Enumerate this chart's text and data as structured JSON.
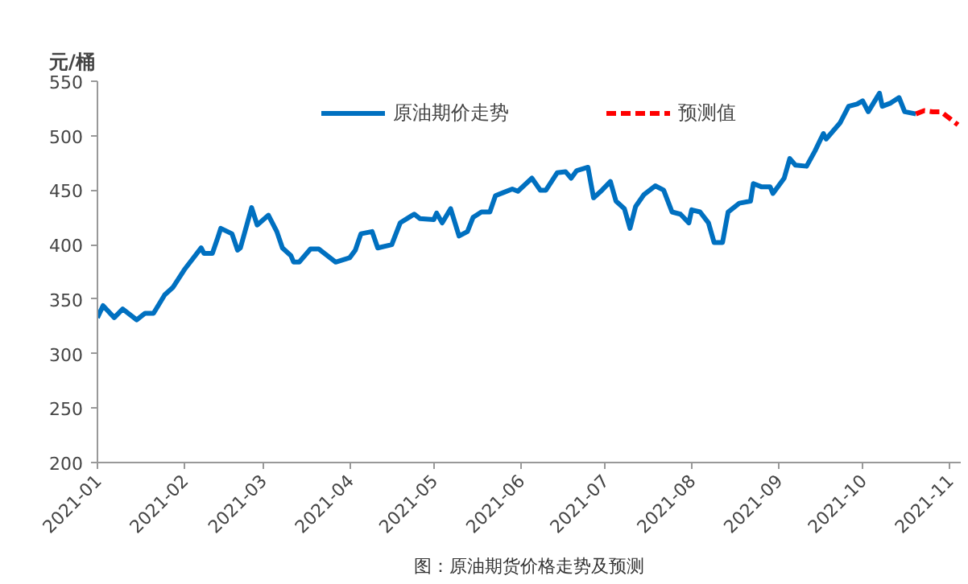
{
  "chart_data": {
    "type": "line",
    "ylabel": "元/桶",
    "annotations": [
      "图：原油期货价格走势及预测"
    ],
    "xlim": [
      "2021-01-01",
      "2021-11-05"
    ],
    "ylim": [
      200,
      550
    ],
    "yticks": [
      200,
      250,
      300,
      350,
      400,
      450,
      500,
      550
    ],
    "xticks": [
      {
        "value": "2021-01-01",
        "label": "2021-01"
      },
      {
        "value": "2021-02-01",
        "label": "2021-02"
      },
      {
        "value": "2021-03-01",
        "label": "2021-03"
      },
      {
        "value": "2021-04-01",
        "label": "2021-04"
      },
      {
        "value": "2021-05-01",
        "label": "2021-05"
      },
      {
        "value": "2021-06-01",
        "label": "2021-06"
      },
      {
        "value": "2021-07-01",
        "label": "2021-07"
      },
      {
        "value": "2021-08-01",
        "label": "2021-08"
      },
      {
        "value": "2021-09-01",
        "label": "2021-09"
      },
      {
        "value": "2021-10-01",
        "label": "2021-10"
      },
      {
        "value": "2021-11-01",
        "label": "2021-11"
      }
    ],
    "grid": false,
    "legend": "top",
    "marker": "none",
    "series": [
      {
        "name": "原油期价走势",
        "color": "#0070c0",
        "line_style": "solid",
        "x": [
          "2021-01-01",
          "2021-01-03",
          "2021-01-07",
          "2021-01-10",
          "2021-01-15",
          "2021-01-18",
          "2021-01-21",
          "2021-01-25",
          "2021-01-28",
          "2021-02-01",
          "2021-02-07",
          "2021-02-08",
          "2021-02-11",
          "2021-02-13",
          "2021-02-14",
          "2021-02-18",
          "2021-02-20",
          "2021-02-21",
          "2021-02-25",
          "2021-02-27",
          "2021-03-03",
          "2021-03-06",
          "2021-03-08",
          "2021-03-11",
          "2021-03-12",
          "2021-03-14",
          "2021-03-18",
          "2021-03-21",
          "2021-03-27",
          "2021-04-01",
          "2021-04-03",
          "2021-04-05",
          "2021-04-09",
          "2021-04-11",
          "2021-04-16",
          "2021-04-19",
          "2021-04-24",
          "2021-04-26",
          "2021-05-01",
          "2021-05-02",
          "2021-05-04",
          "2021-05-07",
          "2021-05-10",
          "2021-05-13",
          "2021-05-15",
          "2021-05-18",
          "2021-05-21",
          "2021-05-23",
          "2021-05-26",
          "2021-05-29",
          "2021-05-31",
          "2021-06-05",
          "2021-06-08",
          "2021-06-10",
          "2021-06-14",
          "2021-06-17",
          "2021-06-19",
          "2021-06-21",
          "2021-06-25",
          "2021-06-27",
          "2021-06-30",
          "2021-07-03",
          "2021-07-05",
          "2021-07-08",
          "2021-07-10",
          "2021-07-12",
          "2021-07-15",
          "2021-07-19",
          "2021-07-22",
          "2021-07-25",
          "2021-07-28",
          "2021-07-31",
          "2021-08-01",
          "2021-08-04",
          "2021-08-07",
          "2021-08-09",
          "2021-08-12",
          "2021-08-14",
          "2021-08-18",
          "2021-08-22",
          "2021-08-23",
          "2021-08-26",
          "2021-08-29",
          "2021-08-30",
          "2021-09-03",
          "2021-09-05",
          "2021-09-07",
          "2021-09-11",
          "2021-09-14",
          "2021-09-17",
          "2021-09-18",
          "2021-09-23",
          "2021-09-26",
          "2021-09-29",
          "2021-10-01",
          "2021-10-03",
          "2021-10-07",
          "2021-10-08",
          "2021-10-11",
          "2021-10-14",
          "2021-10-16",
          "2021-10-20"
        ],
        "values": [
          333,
          344,
          333,
          341,
          331,
          337,
          337,
          354,
          361,
          377,
          397,
          392,
          392,
          407,
          415,
          410,
          395,
          397,
          434,
          418,
          427,
          412,
          397,
          390,
          384,
          384,
          396,
          396,
          384,
          388,
          395,
          410,
          412,
          397,
          400,
          420,
          428,
          424,
          423,
          429,
          420,
          433,
          408,
          412,
          425,
          430,
          430,
          445,
          448,
          451,
          449,
          461,
          450,
          450,
          466,
          467,
          461,
          468,
          471,
          443,
          450,
          458,
          440,
          433,
          415,
          435,
          446,
          454,
          450,
          430,
          428,
          420,
          432,
          430,
          420,
          402,
          402,
          430,
          438,
          440,
          456,
          453,
          453,
          447,
          461,
          479,
          473,
          472,
          486,
          502,
          497,
          512,
          527,
          529,
          532,
          522,
          539,
          527,
          530,
          535,
          522,
          520
        ]
      },
      {
        "name": "预测值",
        "color": "#ff0000",
        "line_style": "dashed",
        "x": [
          "2021-10-20",
          "2021-10-23",
          "2021-10-26",
          "2021-10-29",
          "2021-11-04"
        ],
        "values": [
          520,
          523,
          522,
          522,
          510
        ]
      }
    ]
  }
}
